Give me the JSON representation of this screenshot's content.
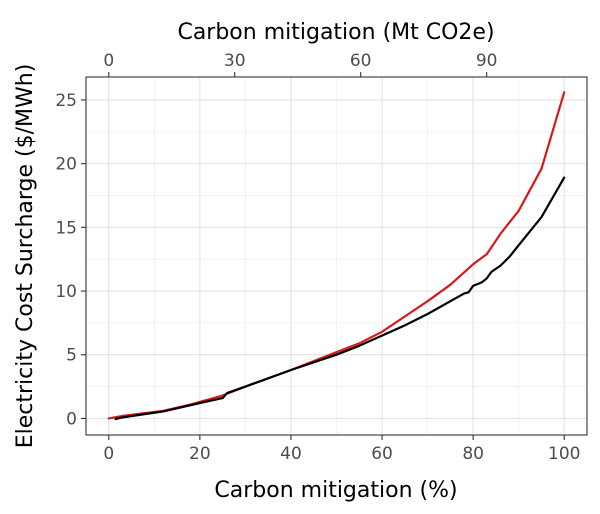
{
  "chart_data": {
    "type": "line",
    "xlabel": "Carbon mitigation (%)",
    "x2label": "Carbon mitigation (Mt CO2e)",
    "ylabel": "Electricity Cost Surcharge ($/MWh)",
    "xlim": [
      -5,
      105
    ],
    "x2lim": [
      -5.42,
      113.9
    ],
    "ylim": [
      -1.3,
      26.8
    ],
    "x_ticks": [
      0,
      20,
      40,
      60,
      80,
      100
    ],
    "x_tick_labels": [
      "0",
      "20",
      "40",
      "60",
      "80",
      "100"
    ],
    "x2_ticks": [
      0,
      30,
      60,
      90
    ],
    "x2_tick_labels": [
      "0",
      "30",
      "60",
      "90"
    ],
    "y_ticks": [
      0,
      5,
      10,
      15,
      20,
      25
    ],
    "y_tick_labels": [
      "0",
      "5",
      "10",
      "15",
      "20",
      "25"
    ],
    "grid": true,
    "series": [
      {
        "name": "red",
        "color": "#d7191c",
        "points": [
          [
            0,
            0
          ],
          [
            3,
            0.2
          ],
          [
            12,
            0.6
          ],
          [
            18,
            1.1
          ],
          [
            25,
            1.8
          ],
          [
            30,
            2.5
          ],
          [
            40,
            3.8
          ],
          [
            50,
            5.2
          ],
          [
            55,
            5.9
          ],
          [
            60,
            6.8
          ],
          [
            65,
            8.0
          ],
          [
            70,
            9.2
          ],
          [
            75,
            10.5
          ],
          [
            80,
            12.1
          ],
          [
            83,
            12.9
          ],
          [
            86,
            14.5
          ],
          [
            90,
            16.3
          ],
          [
            95,
            19.6
          ],
          [
            100,
            25.6
          ]
        ]
      },
      {
        "name": "black",
        "color": "#000000",
        "points": [
          [
            1.5,
            -0.05
          ],
          [
            2.5,
            0.05
          ],
          [
            12,
            0.55
          ],
          [
            20,
            1.2
          ],
          [
            25,
            1.6
          ],
          [
            26,
            2.0
          ],
          [
            30,
            2.5
          ],
          [
            40,
            3.8
          ],
          [
            50,
            5.0
          ],
          [
            55,
            5.7
          ],
          [
            60,
            6.5
          ],
          [
            65,
            7.3
          ],
          [
            70,
            8.2
          ],
          [
            75,
            9.2
          ],
          [
            78,
            9.8
          ],
          [
            79,
            9.9
          ],
          [
            80,
            10.4
          ],
          [
            82,
            10.7
          ],
          [
            83,
            11.0
          ],
          [
            83.6,
            11.3
          ],
          [
            84,
            11.5
          ],
          [
            86,
            12.0
          ],
          [
            88,
            12.7
          ],
          [
            90,
            13.6
          ],
          [
            95,
            15.8
          ],
          [
            100,
            18.9
          ]
        ]
      }
    ]
  }
}
